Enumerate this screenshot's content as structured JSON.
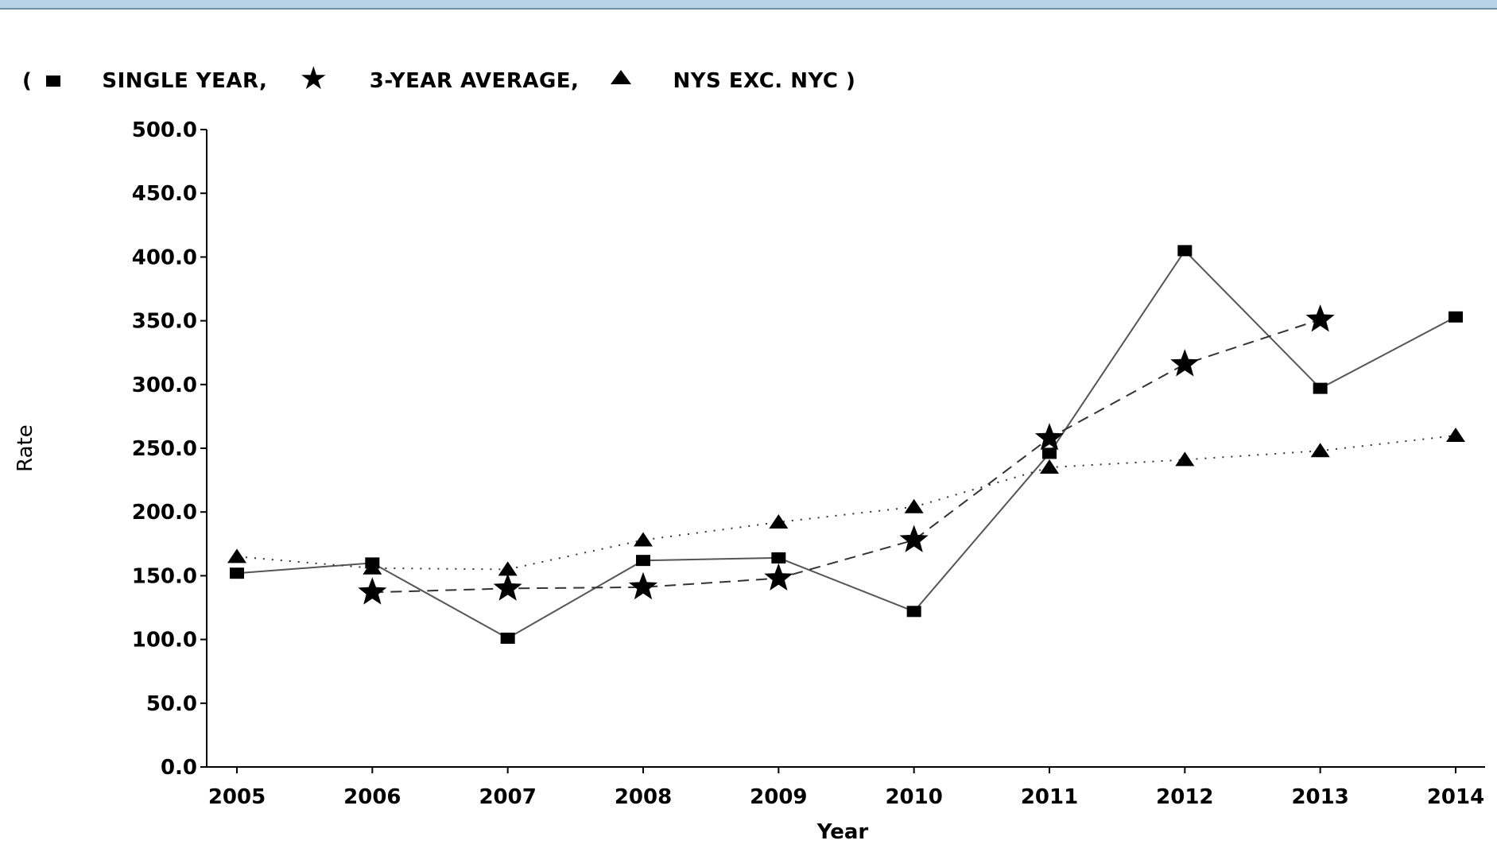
{
  "chart_data": {
    "type": "line",
    "xlabel": "Year",
    "ylabel": "Rate",
    "ylim": [
      0,
      500
    ],
    "yticks": [
      "0.0",
      "50.0",
      "100.0",
      "150.0",
      "200.0",
      "250.0",
      "300.0",
      "350.0",
      "400.0",
      "450.0",
      "500.0"
    ],
    "categories": [
      "2005",
      "2006",
      "2007",
      "2008",
      "2009",
      "2010",
      "2011",
      "2012",
      "2013",
      "2014"
    ],
    "legend": {
      "open": "(",
      "items": [
        "SINGLE YEAR,",
        "3-YEAR AVERAGE,",
        "NYS EXC. NYC )"
      ]
    },
    "series": [
      {
        "name": "SINGLE YEAR",
        "marker": "square",
        "line": "solid",
        "values": [
          152,
          160,
          101,
          162,
          164,
          122,
          246,
          405,
          297,
          353
        ]
      },
      {
        "name": "3-YEAR AVERAGE",
        "marker": "star",
        "line": "dashed",
        "values": [
          null,
          137,
          140,
          141,
          148,
          178,
          258,
          316,
          351,
          null
        ]
      },
      {
        "name": "NYS EXC. NYC",
        "marker": "triangle",
        "line": "dotted",
        "values": [
          165,
          156,
          155,
          178,
          192,
          204,
          235,
          241,
          248,
          260
        ]
      }
    ]
  }
}
